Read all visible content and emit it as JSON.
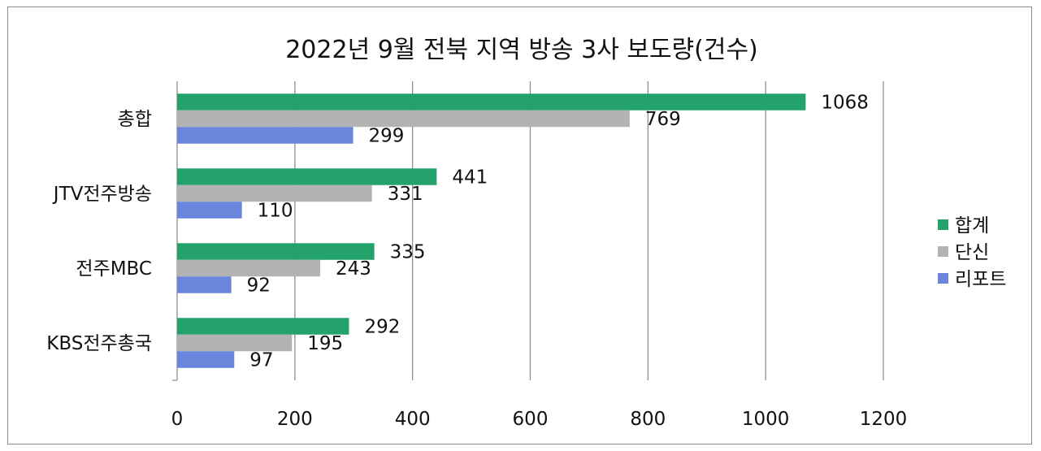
{
  "chart_data": {
    "type": "bar",
    "orientation": "horizontal",
    "title": "2022년 9월 전북 지역 방송 3사 보도량(건수)",
    "xlabel": "",
    "ylabel": "",
    "categories": [
      "총합",
      "JTV전주방송",
      "전주MBC",
      "KBS전주총국"
    ],
    "series": [
      {
        "name": "합계",
        "color": "#23a36b",
        "values": [
          1068,
          441,
          335,
          292
        ]
      },
      {
        "name": "단신",
        "color": "#b3b3b3",
        "values": [
          769,
          331,
          243,
          195
        ]
      },
      {
        "name": "리포트",
        "color": "#6a85dc",
        "values": [
          299,
          110,
          92,
          97
        ]
      }
    ],
    "xlim": [
      0,
      1200
    ],
    "xticks": [
      0,
      200,
      400,
      600,
      800,
      1000,
      1200
    ],
    "grid": true,
    "data_labels": true,
    "legend_position": "right"
  }
}
